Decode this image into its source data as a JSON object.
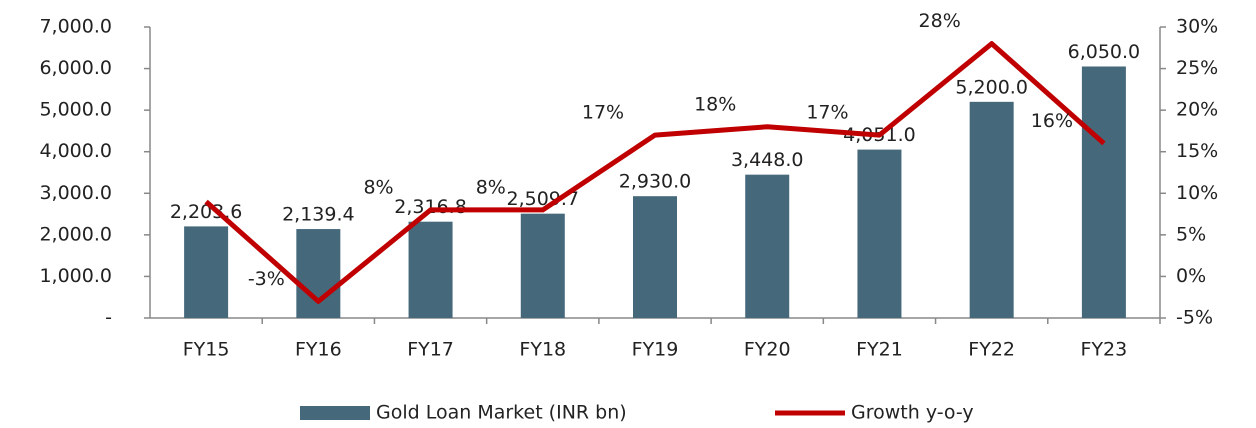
{
  "chart_data": {
    "type": "bar",
    "categories": [
      "FY15",
      "FY16",
      "FY17",
      "FY18",
      "FY19",
      "FY20",
      "FY21",
      "FY22",
      "FY23"
    ],
    "series": [
      {
        "name": "Gold Loan Market (INR bn)",
        "type": "bar",
        "color": "#45687b",
        "values": [
          2203.6,
          2139.4,
          2316.8,
          2509.7,
          2930.0,
          3448.0,
          4051.0,
          5200.0,
          6050.0
        ],
        "value_labels": [
          "2,203.6",
          "2,139.4",
          "2,316.8",
          "2,509.7",
          "2,930.0",
          "3,448.0",
          "4,051.0",
          "5,200.0",
          "6,050.0"
        ]
      },
      {
        "name": "Growth y-o-y",
        "type": "line",
        "axis": "y2",
        "color": "#c00000",
        "values": [
          9,
          -3,
          8,
          8,
          17,
          18,
          17,
          28,
          16
        ],
        "value_labels": [
          null,
          "-3%",
          "8%",
          "8%",
          "17%",
          "18%",
          "17%",
          "28%",
          "16%"
        ]
      }
    ],
    "ylim": [
      0,
      7000
    ],
    "yticks": [
      {
        "value": 0,
        "label": "-"
      },
      {
        "value": 1000,
        "label": "1,000.0"
      },
      {
        "value": 2000,
        "label": "2,000.0"
      },
      {
        "value": 3000,
        "label": "3,000.0"
      },
      {
        "value": 4000,
        "label": "4,000.0"
      },
      {
        "value": 5000,
        "label": "5,000.0"
      },
      {
        "value": 6000,
        "label": "6,000.0"
      },
      {
        "value": 7000,
        "label": "7,000.0"
      }
    ],
    "y2lim": [
      -5,
      30
    ],
    "y2ticks": [
      {
        "value": -5,
        "label": "-5%"
      },
      {
        "value": 0,
        "label": "0%"
      },
      {
        "value": 5,
        "label": "5%"
      },
      {
        "value": 10,
        "label": "10%"
      },
      {
        "value": 15,
        "label": "15%"
      },
      {
        "value": 20,
        "label": "20%"
      },
      {
        "value": 25,
        "label": "25%"
      },
      {
        "value": 30,
        "label": "30%"
      }
    ],
    "legend": "bottom"
  }
}
